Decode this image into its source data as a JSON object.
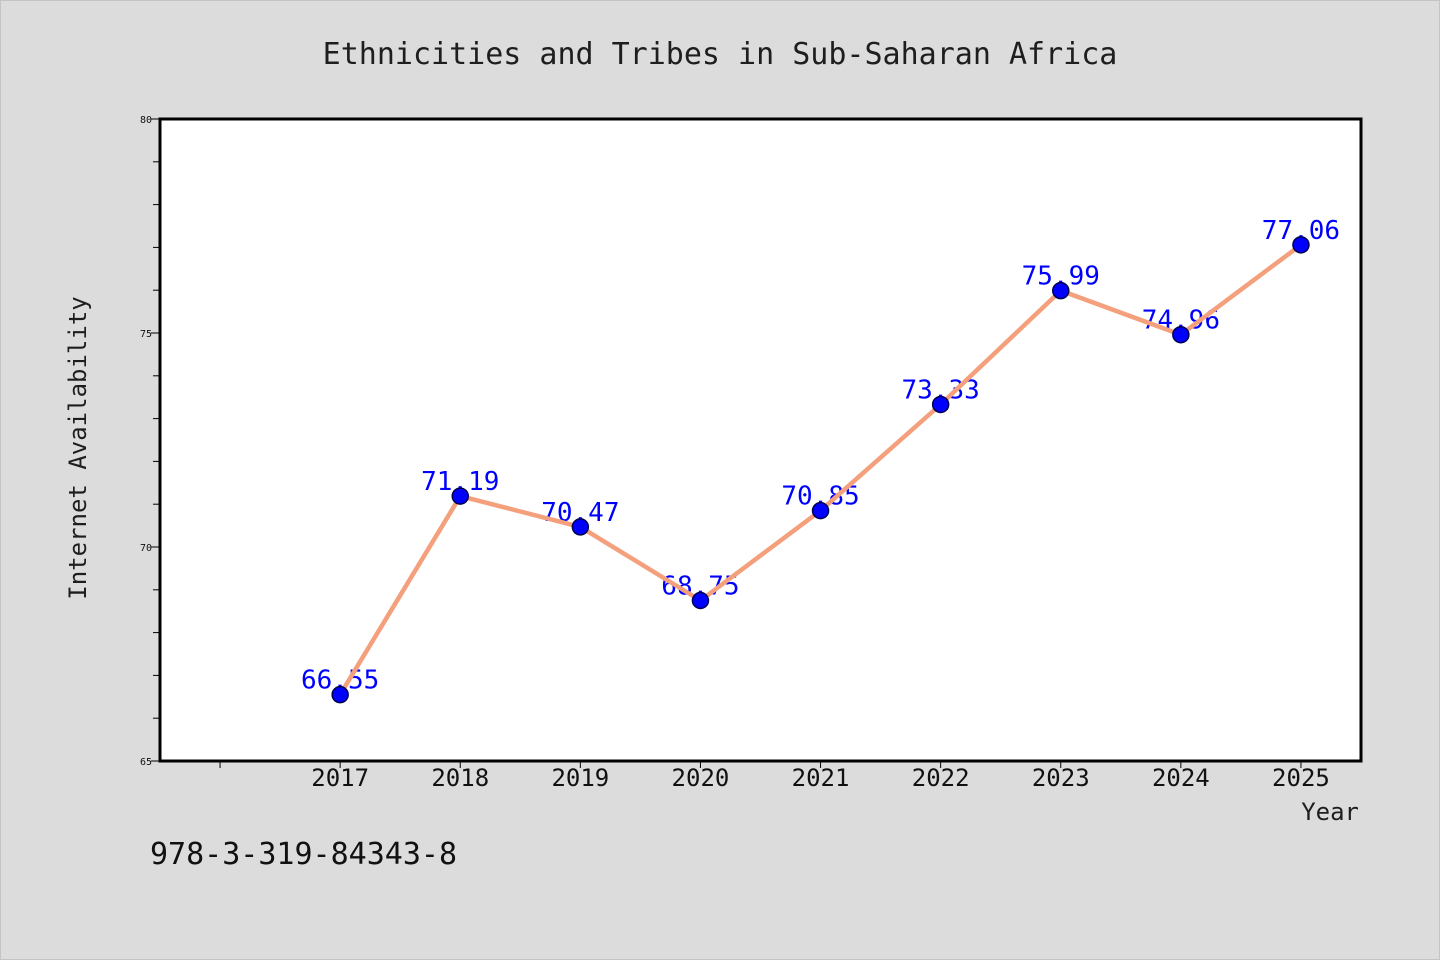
{
  "chart_data": {
    "type": "line",
    "title": "Ethnicities and Tribes in Sub-Saharan Africa",
    "xlabel": "Year",
    "ylabel": "Internet Availability",
    "x": [
      2017,
      2018,
      2019,
      2020,
      2021,
      2022,
      2023,
      2024,
      2025
    ],
    "series": [
      {
        "values": [
          66.55,
          71.19,
          70.47,
          68.75,
          70.85,
          73.33,
          75.99,
          74.96,
          77.06
        ],
        "line_color": "#f4a07c",
        "marker_color": "#0000ff",
        "marker_edge_color": "#00004d",
        "label_color": "#0000ff"
      }
    ],
    "xlim": [
      2015.5,
      2025.5
    ],
    "ylim": [
      65,
      80
    ],
    "yticks": [
      65,
      70,
      75,
      80
    ],
    "y_minor_step": 1,
    "grid": false,
    "legend": "none",
    "data_labels": true
  },
  "annotation": "978-3-319-84343-8",
  "colors": {
    "background": "#dcdcdc",
    "plot_background": "#ffffff",
    "axis": "#000000"
  }
}
